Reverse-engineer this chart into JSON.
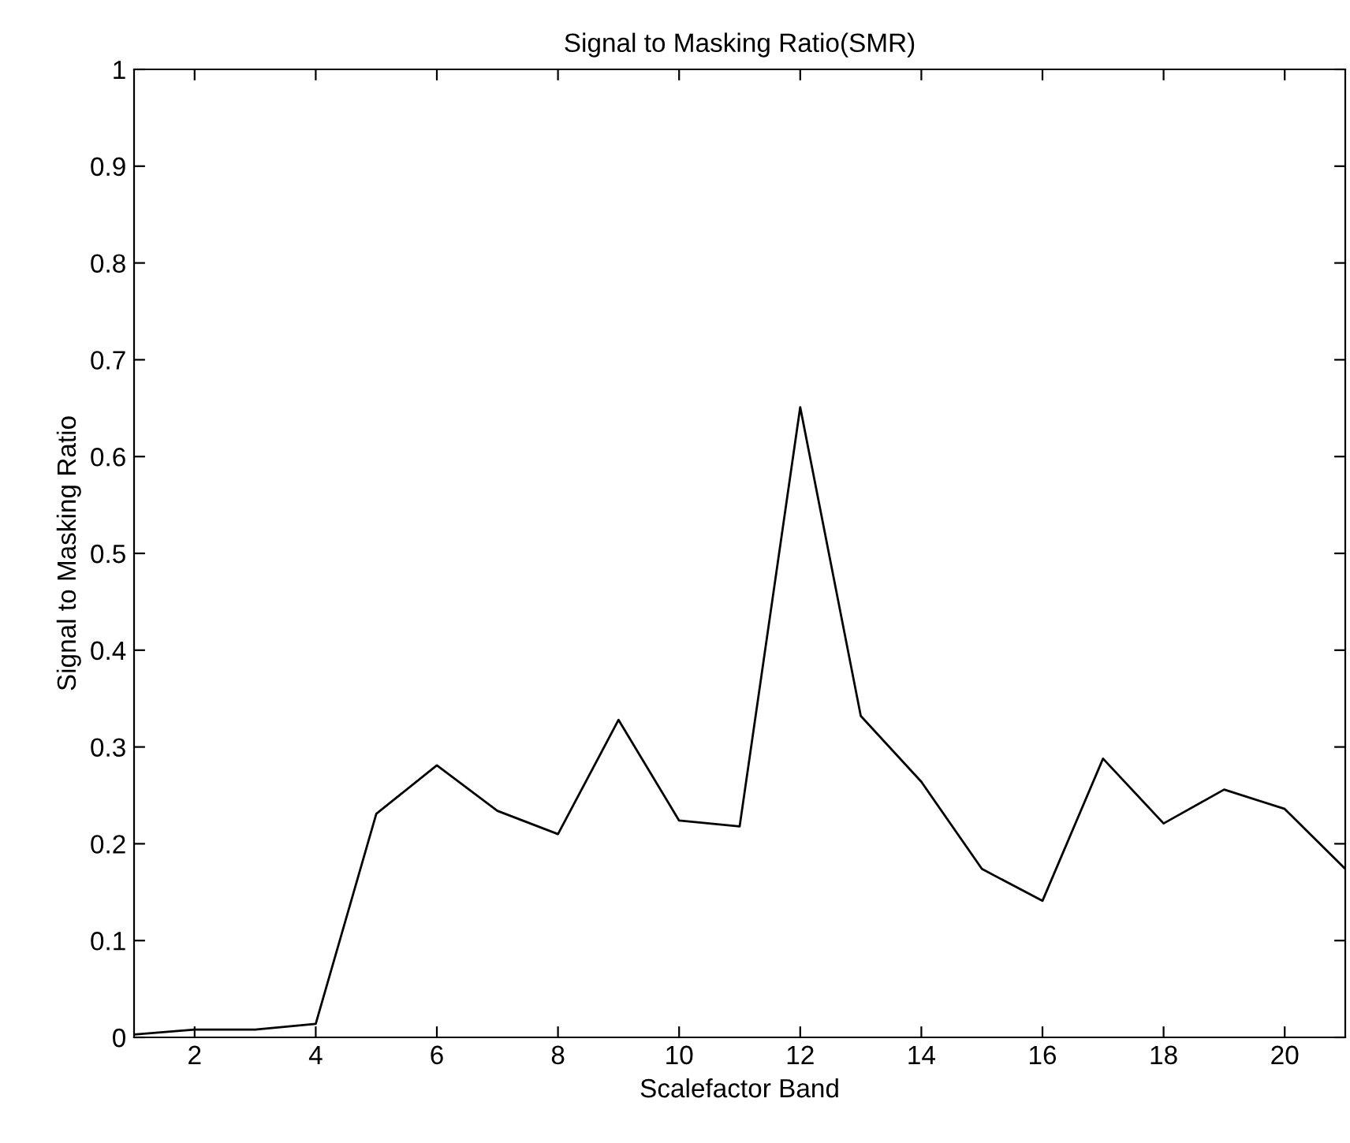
{
  "chart_data": {
    "type": "line",
    "title": "Signal to Masking Ratio(SMR)",
    "xlabel": "Scalefactor Band",
    "ylabel": "Signal to Masking Ratio",
    "x": [
      1,
      2,
      3,
      4,
      5,
      6,
      7,
      8,
      9,
      10,
      11,
      12,
      13,
      14,
      15,
      16,
      17,
      18,
      19,
      20,
      21
    ],
    "series": [
      {
        "color": "#000000",
        "values": [
          0.003,
          0.008,
          0.008,
          0.014,
          0.231,
          0.281,
          0.234,
          0.21,
          0.328,
          0.224,
          0.218,
          0.651,
          0.332,
          0.264,
          0.174,
          0.141,
          0.288,
          0.221,
          0.256,
          0.236,
          0.174
        ]
      }
    ],
    "xlim": [
      1,
      21
    ],
    "xticks": [
      2,
      4,
      6,
      8,
      10,
      12,
      14,
      16,
      18,
      20
    ],
    "ylim": [
      0,
      1
    ],
    "yticks": [
      0,
      {
        "value": 0.1,
        "label": "0.1"
      },
      {
        "value": 0.2,
        "label": "0.2"
      },
      {
        "value": 0.3,
        "label": "0.3"
      },
      {
        "value": 0.4,
        "label": "0.4"
      },
      {
        "value": 0.5,
        "label": "0.5"
      },
      {
        "value": 0.6,
        "label": "0.6"
      },
      {
        "value": 0.7,
        "label": "0.7"
      },
      {
        "value": 0.8,
        "label": "0.8"
      },
      {
        "value": 0.9,
        "label": "0.9"
      },
      1
    ],
    "grid": false,
    "marker": "none",
    "line_style": "solid"
  }
}
